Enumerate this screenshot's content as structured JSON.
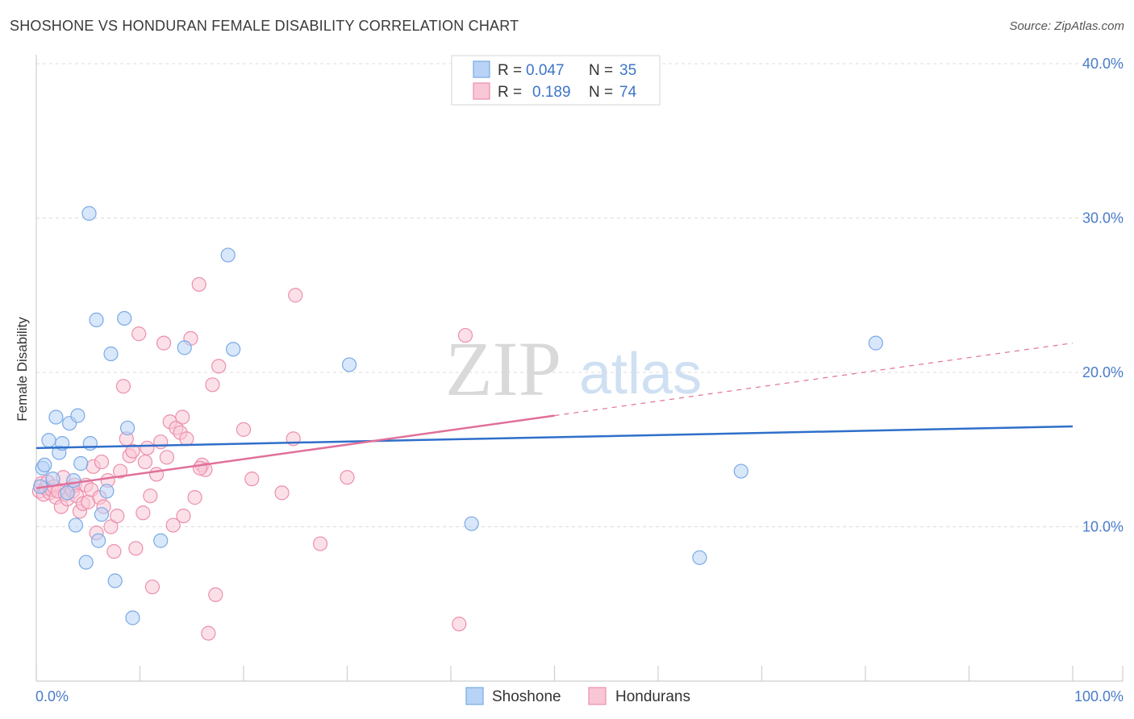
{
  "header": {
    "title": "SHOSHONE VS HONDURAN FEMALE DISABILITY CORRELATION CHART",
    "source": "Source: ZipAtlas.com"
  },
  "watermark": {
    "zip": "ZIP",
    "atlas": "atlas"
  },
  "legend_box": {
    "rows": [
      {
        "r_label": "R =",
        "r_value": "0.047",
        "n_label": "N =",
        "n_value": "35"
      },
      {
        "r_label": "R =",
        "r_value": "0.189",
        "n_label": "N =",
        "n_value": "74"
      }
    ]
  },
  "colors": {
    "shoshone_fill": "#b8d3f5",
    "shoshone_stroke": "#7aaae6",
    "shoshone_line": "#2f6fca",
    "honduran_fill": "#f9c6d6",
    "honduran_stroke": "#eb8fad",
    "honduran_line": "#e0709a",
    "grid": "#dcdcdc",
    "tick_text": "#4a7cc9"
  },
  "chart_data": {
    "type": "scatter",
    "title": "SHOSHONE VS HONDURAN FEMALE DISABILITY CORRELATION CHART",
    "xlabel": "",
    "ylabel": "Female Disability",
    "xlim": [
      0,
      100
    ],
    "ylim": [
      0,
      41
    ],
    "x_tick_labels": [
      "0.0%",
      "100.0%"
    ],
    "y_ticks": [
      10,
      20,
      30,
      40
    ],
    "y_tick_labels": [
      "10.0%",
      "20.0%",
      "30.0%",
      "40.0%"
    ],
    "legend": [
      "Shoshone",
      "Hondurans"
    ],
    "series": [
      {
        "name": "Shoshone",
        "R": 0.047,
        "N": 35,
        "trend": {
          "x0": 0,
          "y0": 15.1,
          "x1": 100,
          "y1": 16.5,
          "dashed_from": null
        },
        "points": [
          [
            0.6,
            13.8
          ],
          [
            0.8,
            14.0
          ],
          [
            1.2,
            15.6
          ],
          [
            1.6,
            13.1
          ],
          [
            1.9,
            17.1
          ],
          [
            2.2,
            14.8
          ],
          [
            2.5,
            15.4
          ],
          [
            3.2,
            16.7
          ],
          [
            3.6,
            13.0
          ],
          [
            3.8,
            10.1
          ],
          [
            4.0,
            17.2
          ],
          [
            4.3,
            14.1
          ],
          [
            4.8,
            7.7
          ],
          [
            5.2,
            15.4
          ],
          [
            5.8,
            23.4
          ],
          [
            6.0,
            9.1
          ],
          [
            6.3,
            10.8
          ],
          [
            6.8,
            12.3
          ],
          [
            5.1,
            30.3
          ],
          [
            7.2,
            21.2
          ],
          [
            7.6,
            6.5
          ],
          [
            8.5,
            23.5
          ],
          [
            8.8,
            16.4
          ],
          [
            9.3,
            4.1
          ],
          [
            12.0,
            9.1
          ],
          [
            14.3,
            21.6
          ],
          [
            18.5,
            27.6
          ],
          [
            19.0,
            21.5
          ],
          [
            30.2,
            20.5
          ],
          [
            42.0,
            10.2
          ],
          [
            64.0,
            8.0
          ],
          [
            68.0,
            13.6
          ],
          [
            81.0,
            21.9
          ],
          [
            0.4,
            12.6
          ],
          [
            3.0,
            12.2
          ]
        ]
      },
      {
        "name": "Hondurans",
        "R": 0.189,
        "N": 74,
        "trend": {
          "x0": 0,
          "y0": 12.5,
          "x1": 100,
          "y1": 21.9,
          "dashed_from": 50
        },
        "points": [
          [
            0.3,
            12.3
          ],
          [
            0.5,
            12.8
          ],
          [
            0.7,
            12.1
          ],
          [
            0.9,
            12.5
          ],
          [
            1.1,
            12.9
          ],
          [
            1.3,
            12.2
          ],
          [
            1.5,
            12.4
          ],
          [
            1.7,
            12.6
          ],
          [
            1.9,
            11.9
          ],
          [
            2.1,
            12.3
          ],
          [
            2.4,
            11.3
          ],
          [
            2.6,
            13.2
          ],
          [
            2.8,
            12.1
          ],
          [
            3.0,
            11.8
          ],
          [
            3.3,
            12.5
          ],
          [
            3.5,
            12.3
          ],
          [
            3.7,
            12.7
          ],
          [
            3.9,
            12.0
          ],
          [
            4.2,
            11.0
          ],
          [
            4.5,
            11.5
          ],
          [
            4.8,
            12.7
          ],
          [
            5.0,
            11.6
          ],
          [
            5.3,
            12.4
          ],
          [
            5.5,
            13.9
          ],
          [
            5.8,
            9.6
          ],
          [
            6.1,
            11.9
          ],
          [
            6.5,
            11.3
          ],
          [
            6.9,
            13.0
          ],
          [
            7.2,
            10.0
          ],
          [
            7.5,
            8.4
          ],
          [
            7.8,
            10.7
          ],
          [
            8.1,
            13.6
          ],
          [
            8.4,
            19.1
          ],
          [
            8.7,
            15.7
          ],
          [
            9.0,
            14.6
          ],
          [
            9.3,
            14.9
          ],
          [
            9.6,
            8.6
          ],
          [
            9.9,
            22.5
          ],
          [
            10.3,
            10.9
          ],
          [
            10.7,
            15.1
          ],
          [
            11.0,
            12.0
          ],
          [
            11.2,
            6.1
          ],
          [
            11.6,
            13.4
          ],
          [
            12.0,
            15.5
          ],
          [
            12.3,
            21.9
          ],
          [
            12.6,
            14.5
          ],
          [
            12.9,
            16.8
          ],
          [
            13.2,
            10.1
          ],
          [
            13.5,
            16.4
          ],
          [
            13.9,
            16.1
          ],
          [
            14.2,
            10.7
          ],
          [
            14.5,
            15.7
          ],
          [
            14.9,
            22.2
          ],
          [
            15.3,
            11.9
          ],
          [
            15.7,
            25.7
          ],
          [
            16.0,
            14.0
          ],
          [
            16.3,
            13.7
          ],
          [
            16.6,
            3.1
          ],
          [
            17.0,
            19.2
          ],
          [
            17.3,
            5.6
          ],
          [
            17.6,
            20.4
          ],
          [
            14.1,
            17.1
          ],
          [
            20.0,
            16.3
          ],
          [
            20.8,
            13.1
          ],
          [
            23.7,
            12.2
          ],
          [
            24.8,
            15.7
          ],
          [
            25.0,
            25.0
          ],
          [
            27.4,
            8.9
          ],
          [
            30.0,
            13.2
          ],
          [
            40.8,
            3.7
          ],
          [
            41.4,
            22.4
          ],
          [
            10.5,
            14.2
          ],
          [
            15.8,
            13.8
          ],
          [
            6.3,
            14.2
          ]
        ]
      }
    ]
  }
}
